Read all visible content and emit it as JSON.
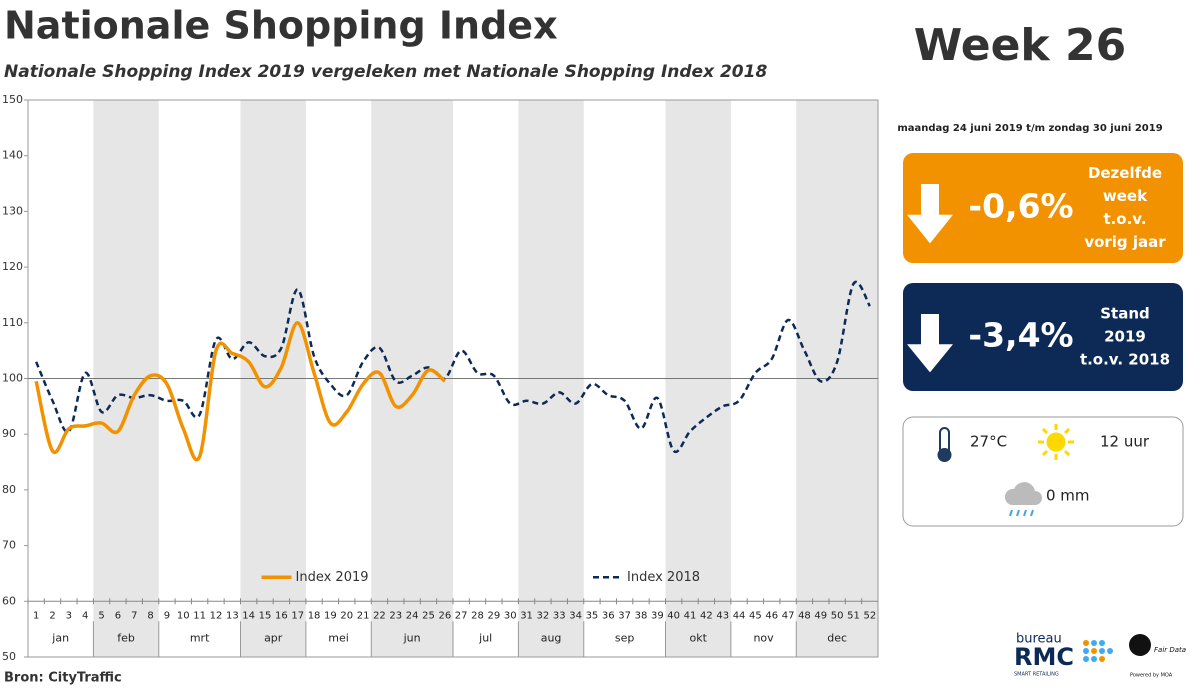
{
  "chart_data": {
    "type": "line",
    "title": "Nationale Shopping Index",
    "subtitle": "Nationale Shopping Index 2019 vergeleken met Nationale Shopping Index 2018",
    "categories": [
      1,
      2,
      3,
      4,
      5,
      6,
      7,
      8,
      9,
      10,
      11,
      12,
      13,
      14,
      15,
      16,
      17,
      18,
      19,
      20,
      21,
      22,
      23,
      24,
      25,
      26,
      27,
      28,
      29,
      30,
      31,
      32,
      33,
      34,
      35,
      36,
      37,
      38,
      39,
      40,
      41,
      42,
      43,
      44,
      45,
      46,
      47,
      48,
      49,
      50,
      51,
      52
    ],
    "months": [
      {
        "label": "jan",
        "first_week": 1,
        "last_week": 4
      },
      {
        "label": "feb",
        "first_week": 5,
        "last_week": 8
      },
      {
        "label": "mrt",
        "first_week": 9,
        "last_week": 13
      },
      {
        "label": "apr",
        "first_week": 14,
        "last_week": 17
      },
      {
        "label": "mei",
        "first_week": 18,
        "last_week": 21
      },
      {
        "label": "jun",
        "first_week": 22,
        "last_week": 26
      },
      {
        "label": "jul",
        "first_week": 27,
        "last_week": 30
      },
      {
        "label": "aug",
        "first_week": 31,
        "last_week": 34
      },
      {
        "label": "sep",
        "first_week": 35,
        "last_week": 39
      },
      {
        "label": "okt",
        "first_week": 40,
        "last_week": 43
      },
      {
        "label": "nov",
        "first_week": 44,
        "last_week": 47
      },
      {
        "label": "dec",
        "first_week": 48,
        "last_week": 52
      }
    ],
    "series": [
      {
        "name": "Index 2019",
        "color": "#f39200",
        "dash": false,
        "values": [
          99.5,
          87,
          91,
          91.5,
          92,
          90.5,
          97,
          100.5,
          99,
          91,
          86,
          105,
          104.5,
          103,
          98.5,
          102,
          110,
          101,
          92,
          94,
          99,
          101,
          95,
          97,
          101.5,
          99.5,
          null,
          null,
          null,
          null,
          null,
          null,
          null,
          null,
          null,
          null,
          null,
          null,
          null,
          null,
          null,
          null,
          null,
          null,
          null,
          null,
          null,
          null,
          null,
          null,
          null,
          null
        ]
      },
      {
        "name": "Index 2018",
        "color": "#0d2a57",
        "dash": true,
        "values": [
          103,
          96,
          90.5,
          101,
          94,
          97,
          96.5,
          97,
          96,
          96,
          93.5,
          107,
          103.5,
          106.5,
          104,
          105.5,
          116,
          104,
          99,
          97,
          103,
          105.5,
          99.5,
          100.5,
          102,
          100,
          105,
          101,
          100.5,
          95.5,
          96,
          95.5,
          97.5,
          95.5,
          99,
          97,
          96,
          91,
          96.5,
          87,
          90.5,
          93,
          95,
          96,
          101,
          103.5,
          110.5,
          105,
          99.5,
          103,
          117,
          113
        ]
      }
    ],
    "ylim": [
      50,
      150
    ],
    "yticks": [
      50,
      60,
      70,
      80,
      90,
      100,
      110,
      120,
      130,
      140,
      150
    ],
    "reference_line": 100,
    "week_axis_at": 60,
    "legend": "bottom"
  },
  "panel": {
    "week": "Week 26",
    "period": "maandag 24 juni 2019 t/m zondag 30 juni 2019",
    "year_change": {
      "value": "-0,6%",
      "lines": [
        "Dezelfde",
        "week",
        "t.o.v.",
        "vorig jaar"
      ],
      "color": "#f39200"
    },
    "level_change": {
      "value": "-3,4%",
      "lines": [
        "Stand",
        "2019",
        "t.o.v. 2018"
      ],
      "color": "#0d2a57"
    },
    "weather": {
      "temperature": "27°C",
      "sun": "12 uur",
      "rain": "0 mm"
    }
  },
  "source": "Bron: CityTraffic",
  "logos": {
    "rmc_top": "bureau",
    "rmc": "RMC",
    "rmc_sub": "SMART RETAILING",
    "fair": "Fair Data",
    "fair_sub": "Powered by MOA"
  }
}
